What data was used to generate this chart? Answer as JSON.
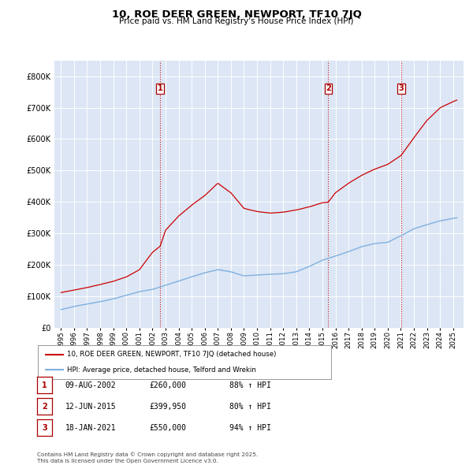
{
  "title": "10, ROE DEER GREEN, NEWPORT, TF10 7JQ",
  "subtitle": "Price paid vs. HM Land Registry's House Price Index (HPI)",
  "background_color": "#ffffff",
  "plot_bg_color": "#dce6f5",
  "grid_color": "#ffffff",
  "hpi_line_color": "#7fb0e0",
  "price_line_color": "#cc0000",
  "vline_color": "#cc0000",
  "purchases": [
    {
      "num": 1,
      "date_label": "09-AUG-2002",
      "price": "£260,000",
      "hpi_pct": "88% ↑ HPI",
      "x_year": 2002.6
    },
    {
      "num": 2,
      "date_label": "12-JUN-2015",
      "price": "£399,950",
      "hpi_pct": "80% ↑ HPI",
      "x_year": 2015.45
    },
    {
      "num": 3,
      "date_label": "18-JAN-2021",
      "price": "£550,000",
      "hpi_pct": "94% ↑ HPI",
      "x_year": 2021.05
    }
  ],
  "legend_house_label": "10, ROE DEER GREEN, NEWPORT, TF10 7JQ (detached house)",
  "legend_hpi_label": "HPI: Average price, detached house, Telford and Wrekin",
  "footer_text": "Contains HM Land Registry data © Crown copyright and database right 2025.\nThis data is licensed under the Open Government Licence v3.0.",
  "ylim": [
    0,
    850000
  ],
  "yticks": [
    0,
    100000,
    200000,
    300000,
    400000,
    500000,
    600000,
    700000,
    800000
  ],
  "xlim": [
    1994.5,
    2025.8
  ],
  "xticks": [
    1995,
    1996,
    1997,
    1998,
    1999,
    2000,
    2001,
    2002,
    2003,
    2004,
    2005,
    2006,
    2007,
    2008,
    2009,
    2010,
    2011,
    2012,
    2013,
    2014,
    2015,
    2016,
    2017,
    2018,
    2019,
    2020,
    2021,
    2022,
    2023,
    2024,
    2025
  ],
  "hpi_anchors_x": [
    1995,
    1996,
    1997,
    1998,
    1999,
    2000,
    2001,
    2002,
    2003,
    2004,
    2005,
    2006,
    2007,
    2008,
    2009,
    2010,
    2011,
    2012,
    2013,
    2014,
    2015,
    2016,
    2017,
    2018,
    2019,
    2020,
    2021,
    2022,
    2023,
    2024,
    2025.3
  ],
  "hpi_anchors_y": [
    58000,
    68000,
    76000,
    83000,
    92000,
    103000,
    115000,
    122000,
    135000,
    148000,
    162000,
    175000,
    185000,
    178000,
    165000,
    168000,
    170000,
    172000,
    178000,
    195000,
    215000,
    228000,
    242000,
    258000,
    268000,
    272000,
    292000,
    315000,
    328000,
    340000,
    350000
  ],
  "price_anchors_x": [
    1995,
    1996,
    1997,
    1998,
    1999,
    2000,
    2001,
    2002,
    2002.6,
    2003,
    2004,
    2005,
    2006,
    2007,
    2008,
    2009,
    2010,
    2011,
    2012,
    2013,
    2014,
    2015,
    2015.45,
    2016,
    2017,
    2018,
    2019,
    2020,
    2021,
    2021.05,
    2022,
    2023,
    2024,
    2025,
    2025.3
  ],
  "price_anchors_y": [
    112000,
    120000,
    128000,
    138000,
    148000,
    162000,
    185000,
    240000,
    260000,
    310000,
    355000,
    390000,
    420000,
    460000,
    430000,
    380000,
    370000,
    365000,
    368000,
    375000,
    385000,
    398000,
    399950,
    430000,
    460000,
    485000,
    505000,
    520000,
    548000,
    550000,
    605000,
    660000,
    700000,
    720000,
    725000
  ]
}
